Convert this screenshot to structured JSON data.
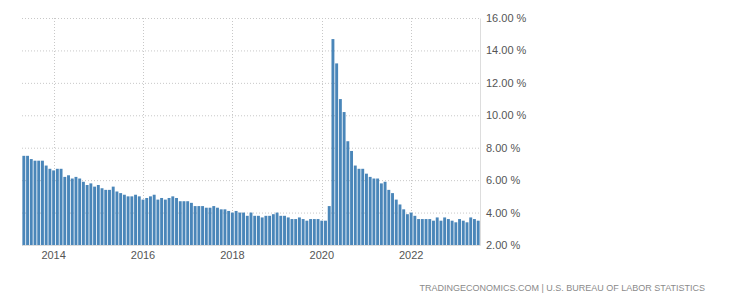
{
  "chart_data": {
    "type": "bar",
    "source": "TRADINGECONOMICS.COM | U.S. BUREAU OF LABOR STATISTICS",
    "categories": [
      null,
      null,
      null,
      null,
      null,
      null,
      null,
      null,
      "2014",
      null,
      null,
      null,
      null,
      null,
      null,
      null,
      null,
      null,
      null,
      null,
      null,
      null,
      null,
      null,
      null,
      null,
      null,
      null,
      null,
      null,
      null,
      null,
      "2016",
      null,
      null,
      null,
      null,
      null,
      null,
      null,
      null,
      null,
      null,
      null,
      null,
      null,
      null,
      null,
      null,
      null,
      null,
      null,
      null,
      null,
      null,
      null,
      "2018",
      null,
      null,
      null,
      null,
      null,
      null,
      null,
      null,
      null,
      null,
      null,
      null,
      null,
      null,
      null,
      null,
      null,
      null,
      null,
      null,
      null,
      null,
      null,
      "2020",
      null,
      null,
      null,
      null,
      null,
      null,
      null,
      null,
      null,
      null,
      null,
      null,
      null,
      null,
      null,
      null,
      null,
      null,
      null,
      null,
      null,
      null,
      null,
      "2022",
      null,
      null,
      null,
      null,
      null,
      null,
      null,
      null,
      null,
      null,
      null,
      null,
      null,
      null,
      null,
      null,
      null,
      null
    ],
    "values": [
      7.5,
      7.5,
      7.3,
      7.2,
      7.2,
      7.2,
      6.9,
      6.7,
      6.6,
      6.7,
      6.7,
      6.2,
      6.3,
      6.1,
      6.2,
      6.1,
      5.9,
      5.7,
      5.8,
      5.6,
      5.7,
      5.5,
      5.4,
      5.4,
      5.6,
      5.3,
      5.2,
      5.1,
      5.0,
      5.0,
      5.1,
      5.0,
      4.8,
      4.9,
      5.0,
      5.1,
      4.8,
      4.9,
      4.8,
      4.9,
      5.0,
      4.9,
      4.7,
      4.7,
      4.7,
      4.6,
      4.4,
      4.4,
      4.4,
      4.3,
      4.3,
      4.4,
      4.3,
      4.2,
      4.2,
      4.1,
      4.0,
      4.1,
      4.0,
      4.0,
      3.8,
      4.0,
      3.8,
      3.8,
      3.7,
      3.8,
      3.8,
      3.9,
      4.0,
      3.8,
      3.8,
      3.7,
      3.6,
      3.6,
      3.7,
      3.6,
      3.5,
      3.6,
      3.6,
      3.6,
      3.5,
      3.5,
      4.4,
      14.7,
      13.2,
      11.0,
      10.2,
      8.4,
      7.8,
      6.9,
      6.7,
      6.7,
      6.4,
      6.2,
      6.1,
      6.1,
      5.8,
      5.9,
      5.4,
      5.2,
      4.8,
      4.5,
      4.2,
      3.9,
      4.0,
      3.8,
      3.6,
      3.6,
      3.6,
      3.6,
      3.5,
      3.7,
      3.5,
      3.7,
      3.6,
      3.5,
      3.4,
      3.6,
      3.5,
      3.4,
      3.7,
      3.6,
      3.5
    ],
    "color": "#4a86b9",
    "ylim": [
      2,
      16
    ],
    "yticks": [
      {
        "value": 2,
        "label": "2.00 %"
      },
      {
        "value": 4,
        "label": "4.00 %"
      },
      {
        "value": 6,
        "label": "6.00 %"
      },
      {
        "value": 8,
        "label": "8.00 %"
      },
      {
        "value": 10,
        "label": "10.00 %"
      },
      {
        "value": 12,
        "label": "12.00 %"
      },
      {
        "value": 14,
        "label": "14.00 %"
      },
      {
        "value": 16,
        "label": "16.00 %"
      }
    ],
    "grid": true
  }
}
